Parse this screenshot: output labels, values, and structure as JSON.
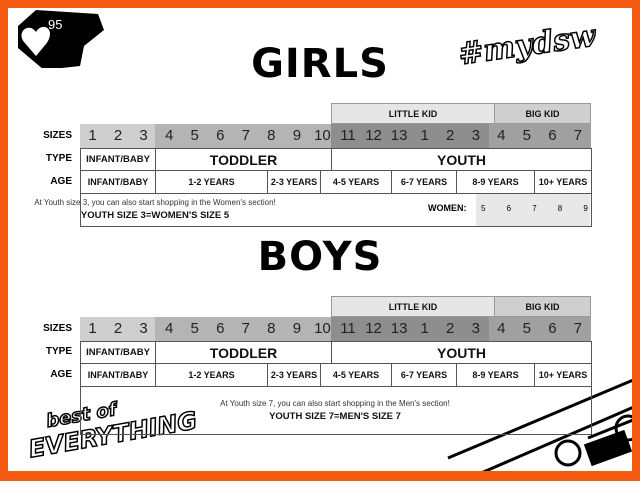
{
  "badge": {
    "icon": "heart-icon",
    "count": "95"
  },
  "hashtag": "#mydsw",
  "logo_text": "best of EVERYTHING",
  "colors": {
    "border": "#f45a12",
    "infant": "#cfcfcf",
    "toddler": "#b4b4b4",
    "little_kid": "#8e8e8e",
    "big_kid": "#a0a0a0"
  },
  "row_labels": {
    "sizes": "SIZES",
    "type": "TYPE",
    "age": "AGE"
  },
  "groups": {
    "little_kid": "LITTLE KID",
    "big_kid": "BIG KID"
  },
  "sizes": [
    "1",
    "2",
    "3",
    "4",
    "5",
    "6",
    "7",
    "8",
    "9",
    "10",
    "11",
    "12",
    "13",
    "1",
    "2",
    "3",
    "4",
    "5",
    "6",
    "7"
  ],
  "types": [
    "INFANT/BABY",
    "TODDLER",
    "YOUTH"
  ],
  "ages": [
    "INFANT/BABY",
    "1-2 YEARS",
    "2-3 YEARS",
    "4-5 YEARS",
    "6-7 YEARS",
    "8-9 YEARS",
    "10+ YEARS"
  ],
  "girls": {
    "title": "GIRLS",
    "note": "At Youth size 3, you can also start shopping in the Women's section!",
    "note_bold": "YOUTH SIZE 3=WOMEN'S SIZE 5",
    "women_label": "WOMEN:",
    "women_sizes": [
      "5",
      "6",
      "7",
      "8",
      "9"
    ]
  },
  "boys": {
    "title": "BOYS",
    "note": "At Youth size 7, you can also start shopping in the Men's section!",
    "note_bold": "YOUTH SIZE 7=MEN'S SIZE 7"
  }
}
